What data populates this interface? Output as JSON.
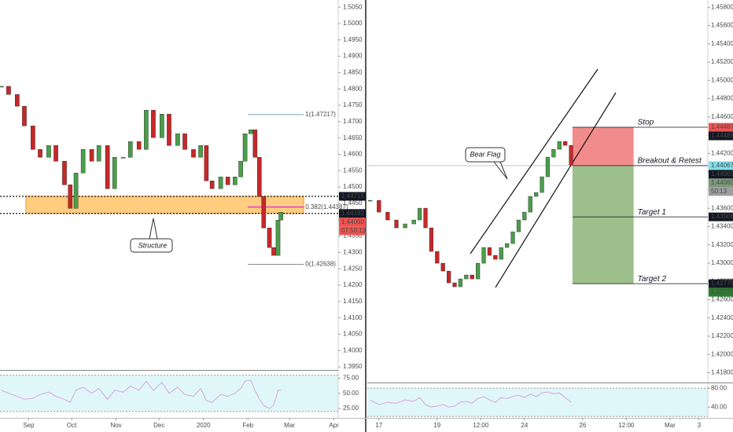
{
  "chart_data": [
    {
      "type": "candlestick",
      "x": [
        -19,
        -14,
        -8,
        -3,
        3,
        8,
        14,
        19,
        25,
        29,
        33,
        38,
        44,
        49,
        55,
        60,
        66,
        71,
        77,
        82,
        87,
        93,
        98,
        104,
        109,
        115,
        120,
        124,
        128,
        134,
        139,
        144,
        148,
        151,
        155,
        158,
        161,
        164,
        168,
        171,
        174,
        176
      ],
      "values": [
        1.4808,
        1.4783,
        1.4747,
        1.4687,
        1.4615,
        1.4591,
        1.4627,
        1.4579,
        1.4507,
        1.4435,
        1.4543,
        1.4615,
        1.4579,
        1.4627,
        1.4495,
        1.4591,
        1.4591,
        1.4639,
        1.4615,
        1.4735,
        1.4651,
        1.4723,
        1.4627,
        1.4663,
        1.4615,
        1.4591,
        1.4627,
        1.4519,
        1.4495,
        1.4531,
        1.4507,
        1.4531,
        1.4579,
        1.4663,
        1.4675,
        1.4591,
        1.4471,
        1.4375,
        1.4315,
        1.4291,
        1.4399,
        1.4423
      ],
      "up_color": "#4a9e4a",
      "down_color": "#c62828",
      "xlim": [
        -20,
        216
      ],
      "xticks": [
        {
          "value": 0,
          "label": "Sep"
        },
        {
          "value": 30,
          "label": "Oct"
        },
        {
          "value": 61,
          "label": "Nov"
        },
        {
          "value": 91,
          "label": "Dec"
        },
        {
          "value": 122,
          "label": "2020"
        },
        {
          "value": 153,
          "label": "Feb"
        },
        {
          "value": 182,
          "label": "Mar"
        },
        {
          "value": 213,
          "label": "Apr"
        }
      ],
      "ylim": [
        1.3943,
        1.5072
      ],
      "yticks": [
        {
          "value": 1.395,
          "label": "1.3950"
        },
        {
          "value": 1.4,
          "label": "1.4000"
        },
        {
          "value": 1.405,
          "label": "1.4050"
        },
        {
          "value": 1.41,
          "label": "1.4100"
        },
        {
          "value": 1.415,
          "label": "1.4150"
        },
        {
          "value": 1.42,
          "label": "1.4200"
        },
        {
          "value": 1.425,
          "label": "1.4250"
        },
        {
          "value": 1.43,
          "label": "1.4300"
        },
        {
          "value": 1.435,
          "label": "1.4350"
        },
        {
          "value": 1.44,
          "label": "1.4400"
        },
        {
          "value": 1.445,
          "label": "1.4450"
        },
        {
          "value": 1.45,
          "label": "1.4500"
        },
        {
          "value": 1.455,
          "label": "1.4550"
        },
        {
          "value": 1.46,
          "label": "1.4600"
        },
        {
          "value": 1.465,
          "label": "1.4650"
        },
        {
          "value": 1.47,
          "label": "1.4700"
        },
        {
          "value": 1.475,
          "label": "1.4750"
        },
        {
          "value": 1.48,
          "label": "1.4800"
        },
        {
          "value": 1.485,
          "label": "1.4850"
        },
        {
          "value": 1.49,
          "label": "1.4900"
        },
        {
          "value": 1.495,
          "label": "1.4950"
        },
        {
          "value": 1.5,
          "label": "1.5000"
        },
        {
          "value": 1.505,
          "label": "1.5050"
        }
      ],
      "lines": [
        1.44715,
        1.44192
      ],
      "zone_x": [
        -2,
        192
      ],
      "zone_color": "#ffcc80",
      "fib_x": [
        153,
        192
      ],
      "fib": [
        {
          "label": "1(1.47217)",
          "value": 1.47217,
          "color": "#7aa0b8"
        },
        {
          "label": "0.382(1.44387)",
          "value": 1.44387,
          "color": "#d500f9"
        },
        {
          "label": "0(1.42638)",
          "value": 1.42638,
          "color": "#8a8a8a"
        }
      ],
      "price_tags": [
        {
          "label": "1.44715",
          "value": 1.44715,
          "color": "#131722"
        },
        {
          "label": "1.44192",
          "value": 1.44192,
          "color": "#131722"
        },
        {
          "label": "1.44060",
          "value": 1.4406,
          "color": "#ef5350"
        },
        {
          "label": "07:50:13",
          "color": "#ef5350"
        }
      ],
      "annotation": "Structure",
      "rsi": {
        "values": [
          55,
          50,
          45,
          40,
          42,
          48,
          52,
          45,
          40,
          35,
          55,
          60,
          50,
          58,
          40,
          55,
          52,
          62,
          55,
          70,
          55,
          68,
          50,
          60,
          48,
          45,
          58,
          38,
          35,
          48,
          45,
          50,
          58,
          70,
          72,
          55,
          40,
          30,
          25,
          30,
          55,
          55
        ],
        "color": "#d9a3d9",
        "band": [
          20,
          80
        ],
        "band_color": "#e0f7fa",
        "ylim": [
          12,
          86
        ],
        "yticks": [
          {
            "value": 25,
            "label": "25.00"
          },
          {
            "value": 50,
            "label": "50.00"
          },
          {
            "value": 75,
            "label": "75.00"
          }
        ]
      }
    },
    {
      "type": "candlestick",
      "x": [
        -0.3,
        0,
        0.3,
        0.6,
        0.9,
        1.2,
        1.4,
        1.6,
        1.8,
        2,
        2.2,
        2.4,
        2.6,
        2.8,
        3,
        3.2,
        3.4,
        3.6,
        3.8,
        4,
        4.2,
        4.4,
        4.6,
        4.8,
        5,
        5.2,
        5.4,
        5.6,
        5.8,
        6,
        6.2,
        6.4,
        6.6
      ],
      "values": [
        1.43687,
        1.43558,
        1.43472,
        1.43386,
        1.43429,
        1.43472,
        1.43601,
        1.43386,
        1.43128,
        1.42999,
        1.42913,
        1.42784,
        1.42741,
        1.42827,
        1.4287,
        1.42827,
        1.42999,
        1.43171,
        1.43085,
        1.43042,
        1.43171,
        1.43214,
        1.43343,
        1.43472,
        1.43558,
        1.4373,
        1.43773,
        1.43945,
        1.4416,
        1.44246,
        1.44332,
        1.44289,
        1.44074
      ],
      "up_color": "#4a9e4a",
      "down_color": "#c62828",
      "xlim": [
        -0.4,
        11.3
      ],
      "xticks": [
        {
          "value": 0,
          "label": "17"
        },
        {
          "value": 2,
          "label": "19"
        },
        {
          "value": 3.5,
          "label": "12:00"
        },
        {
          "value": 5,
          "label": "24"
        },
        {
          "value": 7,
          "label": "26"
        },
        {
          "value": 8.5,
          "label": "12:00"
        },
        {
          "value": 10,
          "label": "Mar"
        },
        {
          "value": 11,
          "label": "3"
        }
      ],
      "ylim": [
        1.4171,
        1.4588
      ],
      "yticks": [
        {
          "value": 1.418,
          "label": "1.41800"
        },
        {
          "value": 1.42,
          "label": "1.42000"
        },
        {
          "value": 1.422,
          "label": "1.42200"
        },
        {
          "value": 1.424,
          "label": "1.42400"
        },
        {
          "value": 1.426,
          "label": "1.42600"
        },
        {
          "value": 1.428,
          "label": "1.42800"
        },
        {
          "value": 1.43,
          "label": "1.43000"
        },
        {
          "value": 1.432,
          "label": "1.43200"
        },
        {
          "value": 1.434,
          "label": "1.43400"
        },
        {
          "value": 1.436,
          "label": "1.43600"
        },
        {
          "value": 1.438,
          "label": "1.43800"
        },
        {
          "value": 1.44,
          "label": "1.44000"
        },
        {
          "value": 1.442,
          "label": "1.44200"
        },
        {
          "value": 1.444,
          "label": "1.44400"
        },
        {
          "value": 1.446,
          "label": "1.44600"
        },
        {
          "value": 1.448,
          "label": "1.44800"
        },
        {
          "value": 1.45,
          "label": "1.45000"
        },
        {
          "value": 1.452,
          "label": "1.45200"
        },
        {
          "value": 1.454,
          "label": "1.45400"
        },
        {
          "value": 1.456,
          "label": "1.45600"
        },
        {
          "value": 1.458,
          "label": "1.45800"
        }
      ],
      "levels": [
        {
          "label": "Stop",
          "value": 1.44487
        },
        {
          "label": "Breakout & Retest",
          "value": 1.44067
        },
        {
          "label": "Target 1",
          "value": 1.43506
        },
        {
          "label": "Target 2",
          "value": 1.42775
        }
      ],
      "box_x": [
        6.65,
        8.75
      ],
      "stop_color": "#f28b8b",
      "target_color": "#9cbf8c",
      "price_tags": [
        {
          "label": "1.44487",
          "value": 1.44487,
          "color": "#ef5350"
        },
        {
          "label": "1.44489",
          "value": 1.44489,
          "color": "#131722"
        },
        {
          "label": "1.44067",
          "value": 1.44067,
          "color": "#80deea",
          "text_color": "#131722"
        },
        {
          "label": "1.44065",
          "value": 1.44065,
          "color": "#131722"
        },
        {
          "label": "1.44060",
          "value": 1.4406,
          "color": "#7a9a7a"
        },
        {
          "label": "50:13",
          "color": "#9e9e9e"
        },
        {
          "label": "1.43506",
          "value": 1.43506,
          "color": "#131722"
        },
        {
          "label": "1.42775",
          "value": 1.42775,
          "color": "#131722"
        },
        {
          "label": "1.42775",
          "value": 1.42775,
          "color": "#2e7d32"
        }
      ],
      "annotation": "Bear Flag",
      "rsi": {
        "values": [
          55,
          45,
          50,
          48,
          55,
          52,
          60,
          45,
          40,
          42,
          45,
          40,
          42,
          50,
          52,
          48,
          58,
          62,
          55,
          50,
          60,
          58,
          62,
          65,
          60,
          68,
          62,
          70,
          72,
          68,
          70,
          60,
          50
        ],
        "color": "#d9a3d9",
        "band": [
          20,
          80
        ],
        "band_color": "#e0f7fa",
        "ylim": [
          17,
          87
        ],
        "yticks": [
          {
            "value": 40,
            "label": "40.00"
          },
          {
            "value": 80,
            "label": "80.00"
          }
        ]
      }
    }
  ]
}
